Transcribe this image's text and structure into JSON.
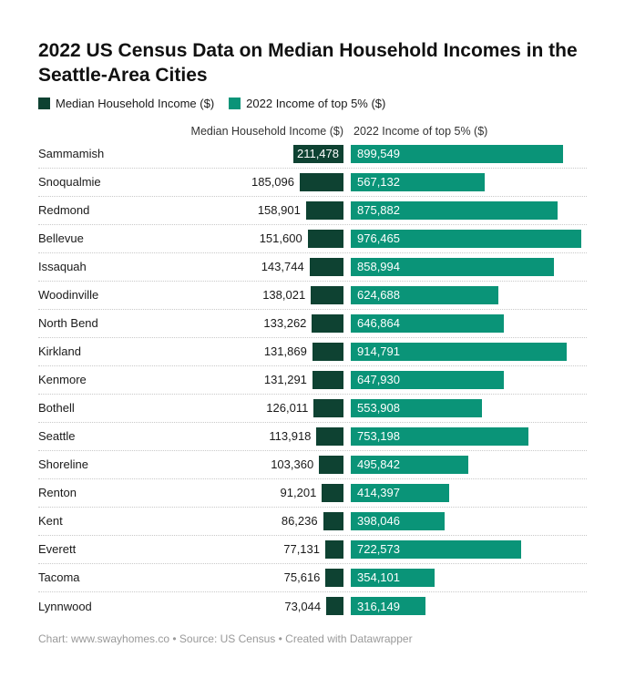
{
  "page": {
    "background": "#ffffff"
  },
  "header": {
    "title": "2022 US Census Data on Median Household Incomes in the Seattle-Area Cities"
  },
  "legend": {
    "items": [
      {
        "label": "Median Household Income ($)",
        "color": "#0e4232"
      },
      {
        "label": "2022 Income of top 5% ($)",
        "color": "#0a9478"
      }
    ]
  },
  "columns": {
    "median_header": "Median Household Income ($)",
    "top5_header": "2022 Income of top 5% ($)"
  },
  "rows": [
    {
      "city": "Sammamish",
      "median_label": "211,478",
      "top5_label": "899,549",
      "median_inside": true
    },
    {
      "city": "Snoqualmie",
      "median_label": "185,096",
      "top5_label": "567,132",
      "median_inside": false
    },
    {
      "city": "Redmond",
      "median_label": "158,901",
      "top5_label": "875,882",
      "median_inside": false
    },
    {
      "city": "Bellevue",
      "median_label": "151,600",
      "top5_label": "976,465",
      "median_inside": false
    },
    {
      "city": "Issaquah",
      "median_label": "143,744",
      "top5_label": "858,994",
      "median_inside": false
    },
    {
      "city": "Woodinville",
      "median_label": "138,021",
      "top5_label": "624,688",
      "median_inside": false
    },
    {
      "city": "North Bend",
      "median_label": "133,262",
      "top5_label": "646,864",
      "median_inside": false
    },
    {
      "city": "Kirkland",
      "median_label": "131,869",
      "top5_label": "914,791",
      "median_inside": false
    },
    {
      "city": "Kenmore",
      "median_label": "131,291",
      "top5_label": "647,930",
      "median_inside": false
    },
    {
      "city": "Bothell",
      "median_label": "126,011",
      "top5_label": "553,908",
      "median_inside": false
    },
    {
      "city": "Seattle",
      "median_label": "113,918",
      "top5_label": "753,198",
      "median_inside": false
    },
    {
      "city": "Shoreline",
      "median_label": "103,360",
      "top5_label": "495,842",
      "median_inside": false
    },
    {
      "city": "Renton",
      "median_label": "91,201",
      "top5_label": "414,397",
      "median_inside": false
    },
    {
      "city": "Kent",
      "median_label": "86,236",
      "top5_label": "398,046",
      "median_inside": false
    },
    {
      "city": "Everett",
      "median_label": "77,131",
      "top5_label": "722,573",
      "median_inside": false
    },
    {
      "city": "Tacoma",
      "median_label": "75,616",
      "top5_label": "354,101",
      "median_inside": false
    },
    {
      "city": "Lynnwood",
      "median_label": "73,044",
      "top5_label": "316,149",
      "median_inside": false
    }
  ],
  "chart_data": {
    "type": "bar",
    "orientation": "horizontal",
    "title": "2022 US Census Data on Median Household Incomes in the Seattle-Area Cities",
    "categories": [
      "Sammamish",
      "Snoqualmie",
      "Redmond",
      "Bellevue",
      "Issaquah",
      "Woodinville",
      "North Bend",
      "Kirkland",
      "Kenmore",
      "Bothell",
      "Seattle",
      "Shoreline",
      "Renton",
      "Kent",
      "Everett",
      "Tacoma",
      "Lynnwood"
    ],
    "series": [
      {
        "name": "Median Household Income ($)",
        "color": "#0e4232",
        "values": [
          211478,
          185096,
          158901,
          151600,
          143744,
          138021,
          133262,
          131869,
          131291,
          126011,
          113918,
          103360,
          91201,
          86236,
          77131,
          75616,
          73044
        ]
      },
      {
        "name": "2022 Income of top 5% ($)",
        "color": "#0a9478",
        "values": [
          899549,
          567132,
          875882,
          976465,
          858994,
          624688,
          646864,
          914791,
          647930,
          553908,
          753198,
          495842,
          414397,
          398046,
          722573,
          354101,
          316149
        ]
      }
    ],
    "value_labels": true,
    "xlim": [
      0,
      976465
    ],
    "grid": false,
    "legend_position": "top"
  },
  "footer": {
    "credit": "Chart: www.swayhomes.co • Source: US Census • Created with Datawrapper"
  }
}
